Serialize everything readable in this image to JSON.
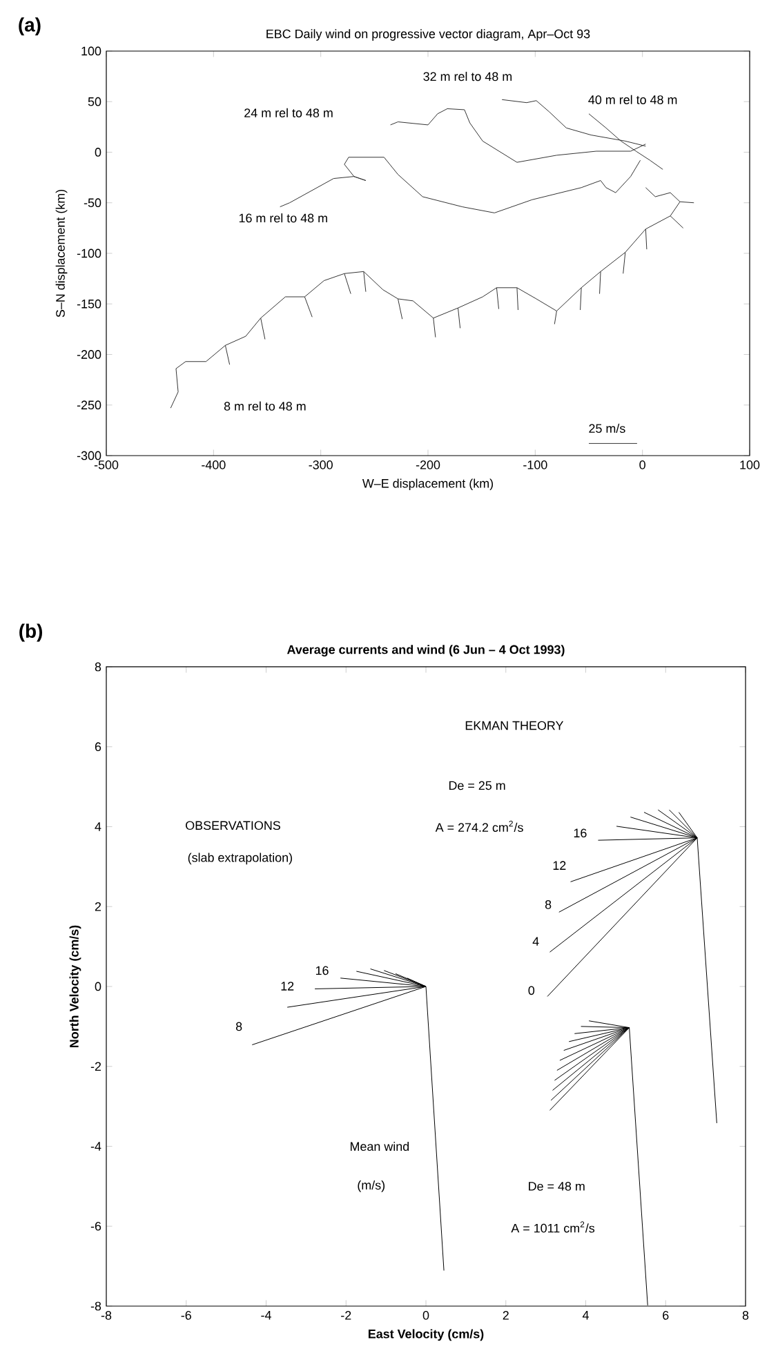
{
  "chart_data": [
    {
      "type": "line",
      "title": "EBC Daily wind on progressive vector diagram, Apr–Oct 93",
      "xlabel": "W–E displacement (km)",
      "ylabel": "S–N displacement (km)",
      "xlim": [
        -500,
        100
      ],
      "ylim": [
        -300,
        100
      ],
      "xticks": [
        -500,
        -400,
        -300,
        -200,
        -100,
        0,
        100
      ],
      "yticks": [
        -300,
        -250,
        -200,
        -150,
        -100,
        -50,
        0,
        50,
        100
      ],
      "series": [
        {
          "color": "#333333",
          "x": [
            -338,
            -329,
            -288,
            -269,
            -258,
            -269,
            -278,
            -274,
            -241,
            -228,
            -205,
            -168,
            -138,
            -103,
            -57,
            -39,
            -34,
            -25,
            -11,
            -2
          ],
          "values": [
            -54,
            -50,
            -26,
            -24,
            -28,
            -24,
            -12,
            -5,
            -5,
            -22,
            -44,
            -54,
            -60,
            -47,
            -35,
            -28,
            -35,
            -40,
            -24,
            -8
          ]
        },
        {
          "color": "#333333",
          "x": [
            -235,
            -228,
            -200,
            -191,
            -182,
            -166,
            -161,
            -149,
            -117,
            -80,
            -43,
            -11,
            3
          ],
          "values": [
            27,
            30,
            27,
            38,
            43,
            42,
            29,
            11,
            -10,
            -3,
            1,
            1,
            8
          ]
        },
        {
          "color": "#333333",
          "x": [
            -131,
            -108,
            -99,
            -87,
            -71,
            -48,
            -16,
            3
          ],
          "values": [
            52,
            49,
            51,
            40,
            24,
            17,
            11,
            6
          ]
        },
        {
          "color": "#333333",
          "x": [
            -50,
            -34,
            -20,
            -6,
            7,
            19
          ],
          "values": [
            38,
            24,
            11,
            1,
            -8,
            -17
          ]
        },
        {
          "color": "#333333",
          "x": [
            -440,
            -433,
            -435,
            -426,
            -407,
            -389,
            -370,
            -356,
            -333,
            -315,
            -297,
            -278,
            -260,
            -242,
            -228,
            -214,
            -195,
            -172,
            -149,
            -136,
            -117,
            -99,
            -80,
            -57,
            -39,
            -16,
            3,
            26,
            35,
            26,
            12,
            3
          ],
          "values": [
            -253,
            -237,
            -214,
            -207,
            -207,
            -191,
            -182,
            -164,
            -143,
            -143,
            -127,
            -120,
            -118,
            -136,
            -145,
            -147,
            -164,
            -154,
            -143,
            -134,
            -134,
            -145,
            -157,
            -134,
            -118,
            -99,
            -76,
            -63,
            -49,
            -40,
            -44,
            -35
          ]
        },
        {
          "color": "#333333",
          "x": [
            -389,
            -385,
            null,
            -356,
            -352,
            null,
            -315,
            -308,
            null,
            -278,
            -272,
            null,
            -260,
            -258,
            null,
            -228,
            -224,
            null,
            -195,
            -193,
            null,
            -172,
            -170,
            null,
            -136,
            -134,
            null,
            -117,
            -116,
            null,
            -80,
            -82,
            null,
            -57,
            -58,
            null,
            -39,
            -40,
            null,
            -16,
            -18,
            null,
            3,
            4,
            null,
            26,
            38,
            null,
            35,
            48
          ],
          "values": [
            -191,
            -210,
            null,
            -164,
            -185,
            null,
            -143,
            -163,
            null,
            -120,
            -140,
            null,
            -118,
            -138,
            null,
            -145,
            -165,
            null,
            -164,
            -183,
            null,
            -154,
            -174,
            null,
            -134,
            -155,
            null,
            -134,
            -156,
            null,
            -157,
            -170,
            null,
            -134,
            -156,
            null,
            -118,
            -140,
            null,
            -99,
            -120,
            null,
            -76,
            -96,
            null,
            -63,
            -75,
            null,
            -49,
            -50
          ]
        },
        {
          "color": "#333333",
          "x": [
            -50,
            -5
          ],
          "values": [
            -288,
            -288
          ]
        }
      ],
      "annotations": [
        "(a)",
        "32 m rel to 48 m",
        "24 m rel to 48 m",
        "40 m rel to 48 m",
        "16 m rel to 48 m",
        "8 m rel to 48 m",
        "25 m/s"
      ]
    },
    {
      "type": "line",
      "title": "Average currents and wind (6 Jun – 4 Oct 1993)",
      "xlabel": "East Velocity (cm/s)",
      "ylabel": "North Velocity (cm/s)",
      "xlim": [
        -8,
        8
      ],
      "ylim": [
        -8,
        8
      ],
      "xticks": [
        -8,
        -6,
        -4,
        -2,
        0,
        2,
        4,
        6,
        8
      ],
      "yticks": [
        -8,
        -6,
        -4,
        -2,
        0,
        2,
        4,
        6,
        8
      ],
      "series": [
        {
          "color": "#000000",
          "x": [
            0,
            -4.35,
            null,
            0,
            -3.47,
            null,
            0,
            -2.78,
            null,
            0,
            -2.14,
            null,
            0,
            -1.74,
            null,
            0,
            -1.39,
            null,
            0,
            -1.05,
            null,
            0,
            -0.76,
            null,
            0,
            -0.47
          ],
          "values": [
            0,
            -1.46,
            null,
            0,
            -0.52,
            null,
            0,
            -0.06,
            null,
            0,
            0.21,
            null,
            0,
            0.38,
            null,
            0,
            0.44,
            null,
            0,
            0.4,
            null,
            0,
            0.32,
            null,
            0,
            0.21
          ]
        },
        {
          "color": "#000000",
          "x": [
            0,
            0.45
          ],
          "values": [
            0,
            -7.11
          ]
        },
        {
          "color": "#000000",
          "x": [
            6.79,
            3.04,
            null,
            6.79,
            3.1,
            null,
            6.79,
            3.33,
            null,
            6.79,
            3.62,
            null,
            6.79,
            4.31,
            null,
            6.79,
            4.77,
            null,
            6.79,
            5.12,
            null,
            6.79,
            5.46,
            null,
            6.79,
            5.81,
            null,
            6.79,
            6.09,
            null,
            6.79,
            6.33
          ],
          "values": [
            3.72,
            -0.25,
            null,
            3.72,
            0.86,
            null,
            3.72,
            1.86,
            null,
            3.72,
            2.62,
            null,
            3.72,
            3.66,
            null,
            3.72,
            4.01,
            null,
            3.72,
            4.24,
            null,
            3.72,
            4.36,
            null,
            3.72,
            4.42,
            null,
            3.72,
            4.42,
            null,
            3.72,
            4.36
          ]
        },
        {
          "color": "#000000",
          "x": [
            6.79,
            7.28
          ],
          "values": [
            3.72,
            -3.42
          ]
        },
        {
          "color": "#000000",
          "x": [
            5.09,
            3.1,
            null,
            5.09,
            3.13,
            null,
            5.09,
            3.17,
            null,
            5.09,
            3.22,
            null,
            5.09,
            3.28,
            null,
            5.09,
            3.35,
            null,
            5.09,
            3.45,
            null,
            5.09,
            3.58,
            null,
            5.09,
            3.72,
            null,
            5.09,
            3.88,
            null,
            5.09,
            4.08
          ],
          "values": [
            -1.03,
            -3.1,
            null,
            -1.03,
            -2.85,
            null,
            -1.03,
            -2.6,
            null,
            -1.03,
            -2.35,
            null,
            -1.03,
            -2.1,
            null,
            -1.03,
            -1.85,
            null,
            -1.03,
            -1.6,
            null,
            -1.03,
            -1.38,
            null,
            -1.03,
            -1.18,
            null,
            -1.03,
            -1.0,
            null,
            -1.03,
            -0.86
          ]
        },
        {
          "color": "#000000",
          "x": [
            5.09,
            5.55
          ],
          "values": [
            -1.03,
            -7.98
          ]
        }
      ],
      "annotations": [
        "(b)",
        "EKMAN THEORY",
        "De = 25 m",
        "A = 274.2 cm$^{2}$/s",
        "OBSERVATIONS",
        "(slab extrapolation)",
        "8",
        "12",
        "16",
        "0",
        "4",
        "8",
        "12",
        "16",
        "Mean wind",
        "(m/s)",
        "De = 48 m",
        "A = 1011 cm$^{2}$/s"
      ]
    }
  ]
}
